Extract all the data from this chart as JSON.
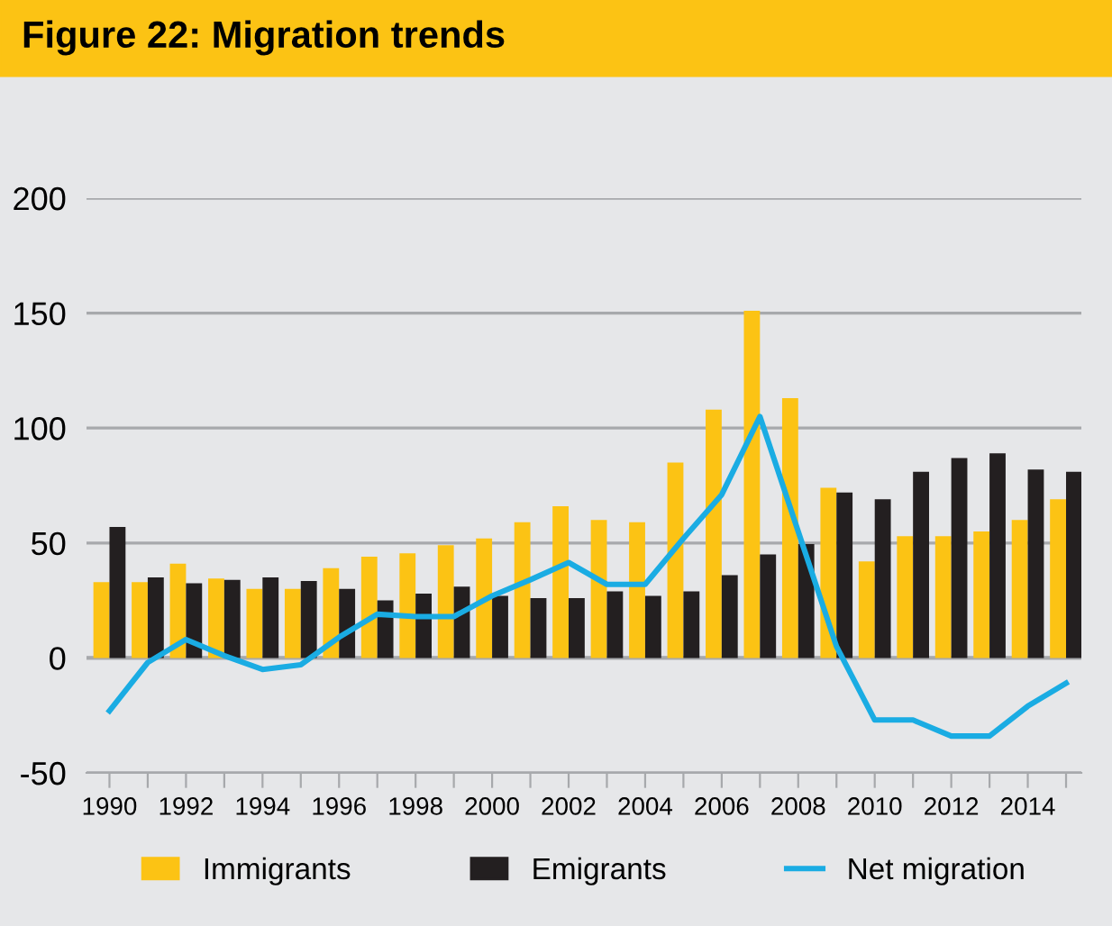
{
  "chart_data": {
    "type": "bar",
    "title": "Figure 22: Migration trends",
    "categories": [
      "1990",
      null,
      "1992",
      null,
      "1994",
      null,
      "1996",
      null,
      "1998",
      null,
      "2000",
      null,
      "2002",
      null,
      "2004",
      null,
      "2006",
      null,
      "2008",
      null,
      "2010",
      null,
      "2012",
      null,
      "2014",
      null
    ],
    "series": [
      {
        "name": "Immigrants",
        "color": "#fcc314",
        "values": [
          33,
          33,
          41,
          34.5,
          30,
          30,
          39,
          44,
          45.5,
          49,
          52,
          59,
          66,
          60,
          59,
          85,
          108,
          151,
          113,
          74,
          42,
          53,
          53,
          55,
          60,
          69
        ]
      },
      {
        "name": "Emigrants",
        "color": "#231f20",
        "values": [
          57,
          35,
          32.5,
          34,
          35,
          33.5,
          30,
          25,
          28,
          31,
          27,
          26,
          26,
          29,
          27,
          29,
          36,
          45,
          49.5,
          72,
          69,
          81,
          87,
          89,
          82,
          81
        ]
      },
      {
        "name": "Net migration",
        "type": "line",
        "color": "#1aace3",
        "values": [
          -23,
          -2,
          8,
          1,
          -5,
          -3,
          9,
          19,
          18,
          18,
          27,
          34,
          41.5,
          32,
          32,
          52,
          71,
          105,
          55,
          5,
          -27,
          -27,
          -34,
          -34,
          -21,
          -11
        ]
      }
    ],
    "ylim": [
      -50,
      200
    ],
    "yticks": [
      -50,
      0,
      50,
      100,
      150,
      200
    ],
    "grid": "y",
    "legend": "bottom"
  }
}
